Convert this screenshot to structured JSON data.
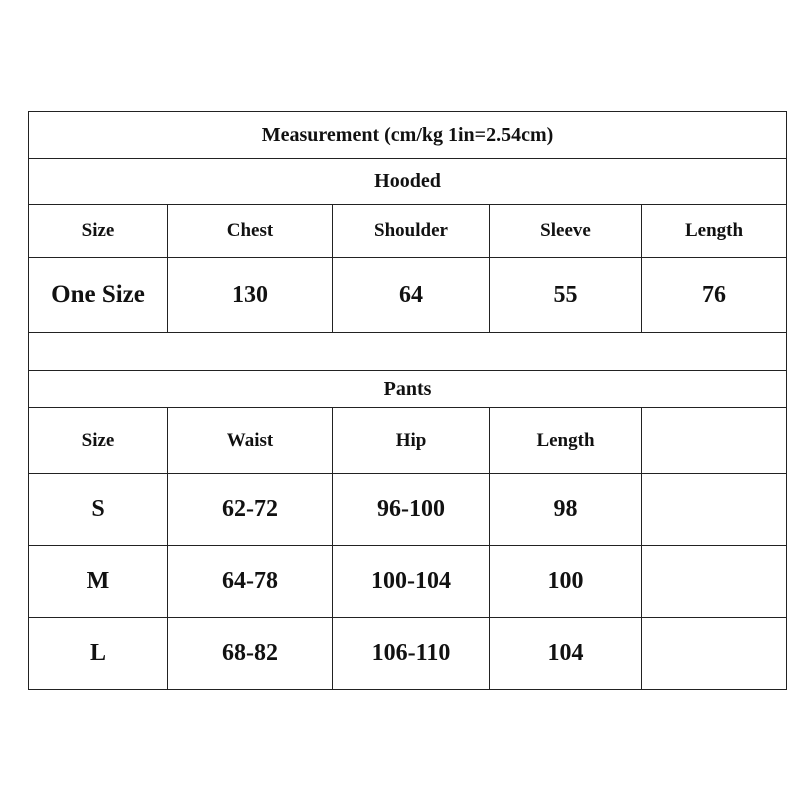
{
  "title": "Measurement (cm/kg 1in=2.54cm)",
  "hooded": {
    "section_label": "Hooded",
    "headers": [
      "Size",
      "Chest",
      "Shoulder",
      "Sleeve",
      "Length"
    ],
    "rows": [
      [
        "One Size",
        "130",
        "64",
        "55",
        "76"
      ]
    ]
  },
  "pants": {
    "section_label": "Pants",
    "headers": [
      "Size",
      "Waist",
      "Hip",
      "Length",
      ""
    ],
    "rows": [
      [
        "S",
        "62-72",
        "96-100",
        "98",
        ""
      ],
      [
        "M",
        "64-78",
        "100-104",
        "100",
        ""
      ],
      [
        "L",
        "68-82",
        "106-110",
        "104",
        ""
      ]
    ]
  }
}
